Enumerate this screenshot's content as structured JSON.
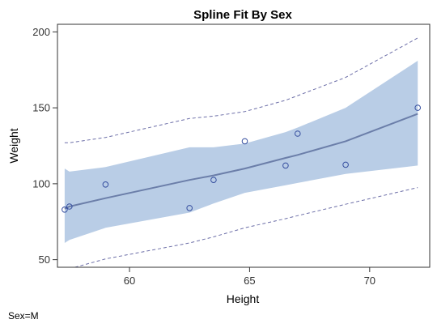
{
  "chart_data": {
    "type": "line",
    "title": "Spline Fit By Sex",
    "xlabel": "Height",
    "ylabel": "Weight",
    "xlim": [
      57,
      72.5
    ],
    "ylim": [
      45,
      205
    ],
    "xticks": [
      60,
      65,
      70
    ],
    "yticks": [
      50,
      100,
      150,
      200
    ],
    "footnote": "Sex=M",
    "grid": false,
    "legend": "none",
    "colors": {
      "frame": "#333333",
      "band": "#b9cde6",
      "fit": "#6b7ea9",
      "prediction": "#6d6fa8",
      "marker": "#344d9e"
    },
    "series": [
      {
        "kind": "scatter",
        "points": [
          [
            57.3,
            83
          ],
          [
            57.5,
            85
          ],
          [
            59.0,
            99.5
          ],
          [
            62.5,
            84
          ],
          [
            63.5,
            102.5
          ],
          [
            64.8,
            128
          ],
          [
            66.5,
            112
          ],
          [
            67.0,
            133
          ],
          [
            69.0,
            112.5
          ],
          [
            72.0,
            150
          ]
        ]
      },
      {
        "kind": "fit",
        "points": [
          [
            57.3,
            83.5
          ],
          [
            57.5,
            85
          ],
          [
            59.0,
            90.5
          ],
          [
            62.5,
            102.5
          ],
          [
            63.5,
            105.5
          ],
          [
            64.8,
            110
          ],
          [
            66.5,
            117
          ],
          [
            67.0,
            119
          ],
          [
            69.0,
            128
          ],
          [
            72.0,
            146
          ]
        ]
      },
      {
        "kind": "confidence",
        "upper": [
          [
            57.3,
            110
          ],
          [
            57.5,
            108
          ],
          [
            59.0,
            111
          ],
          [
            62.5,
            124
          ],
          [
            63.5,
            124
          ],
          [
            64.8,
            126.5
          ],
          [
            66.5,
            134
          ],
          [
            67.0,
            137
          ],
          [
            69.0,
            150
          ],
          [
            72.0,
            181
          ]
        ],
        "lower": [
          [
            57.3,
            61
          ],
          [
            57.5,
            63
          ],
          [
            59.0,
            71
          ],
          [
            62.5,
            81
          ],
          [
            63.5,
            87
          ],
          [
            64.8,
            94
          ],
          [
            66.5,
            99
          ],
          [
            67.0,
            100.5
          ],
          [
            69.0,
            106.5
          ],
          [
            72.0,
            112
          ]
        ]
      },
      {
        "kind": "prediction",
        "upper": [
          [
            57.3,
            127
          ],
          [
            57.5,
            127
          ],
          [
            59.0,
            130.5
          ],
          [
            62.5,
            143
          ],
          [
            63.5,
            144.5
          ],
          [
            64.8,
            147.5
          ],
          [
            66.5,
            155
          ],
          [
            67.0,
            158
          ],
          [
            69.0,
            170
          ],
          [
            72.0,
            196
          ]
        ],
        "lower": [
          [
            57.3,
            42
          ],
          [
            57.5,
            44
          ],
          [
            59.0,
            50.5
          ],
          [
            62.5,
            61
          ],
          [
            63.5,
            65
          ],
          [
            64.8,
            71
          ],
          [
            66.5,
            77
          ],
          [
            67.0,
            79
          ],
          [
            69.0,
            86.5
          ],
          [
            72.0,
            97.5
          ]
        ]
      }
    ]
  }
}
